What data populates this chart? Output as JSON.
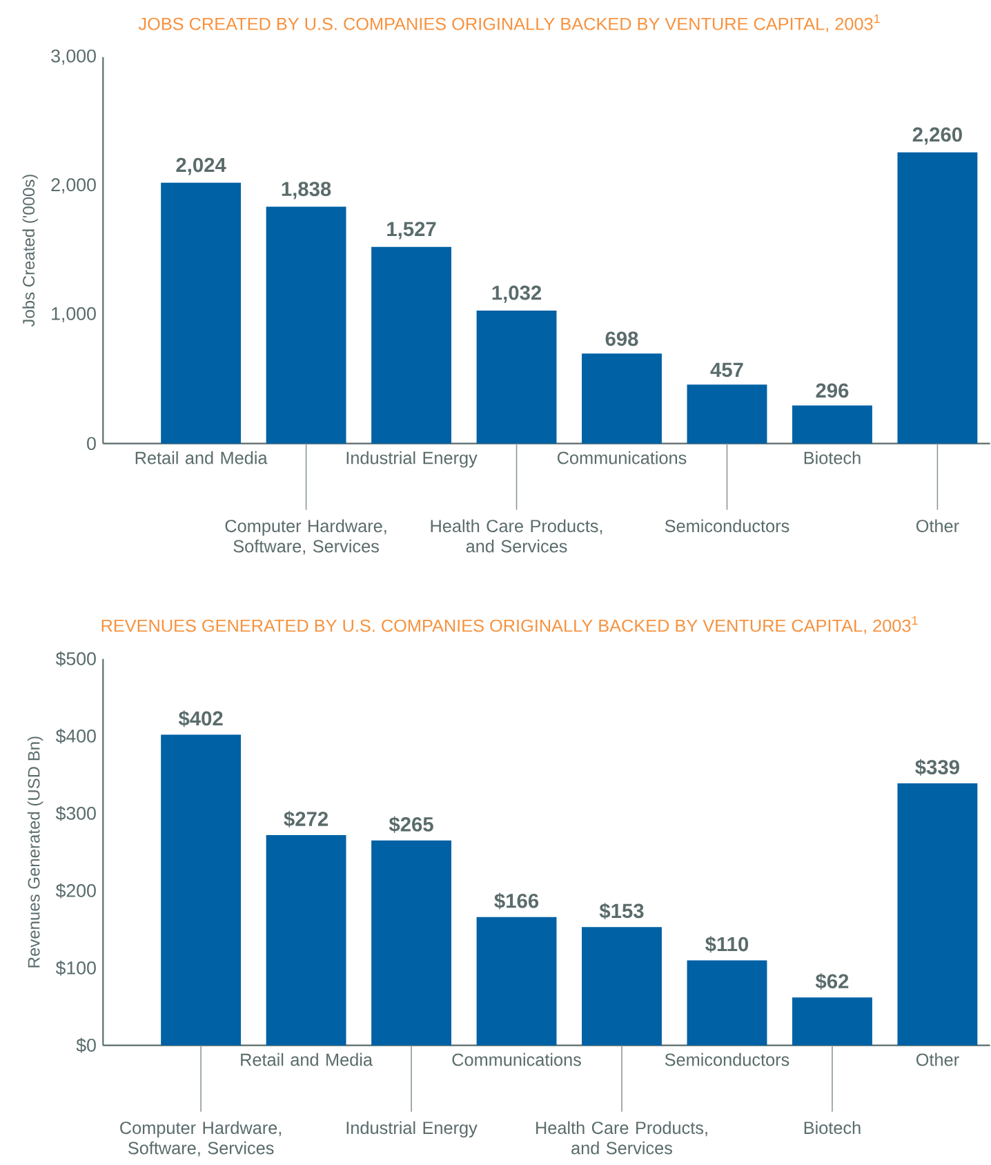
{
  "chart_data": [
    {
      "type": "bar",
      "title": "JOBS CREATED BY U.S. COMPANIES ORIGINALLY BACKED BY VENTURE CAPITAL, 2003$^{1}$",
      "ylabel": "Jobs Created ('000s)",
      "categories": [
        "Retail and Media",
        "Computer Hardware, Software, Services",
        "Industrial Energy",
        "Health Care Products, and Services",
        "Communications",
        "Semiconductors",
        "Biotech",
        "Other"
      ],
      "values": [
        2024,
        1838,
        1527,
        1032,
        698,
        457,
        296,
        2260
      ],
      "value_labels": [
        "2,024",
        "1,838",
        "1,527",
        "1,032",
        "698",
        "457",
        "296",
        "2,260"
      ],
      "color": "#0061a4",
      "ylim": [
        0,
        3000
      ],
      "yticks": [
        0,
        {
          "value": 1000,
          "label": "1,000"
        },
        {
          "value": 2000,
          "label": "2,000"
        },
        {
          "value": 3000,
          "label": "3,000"
        }
      ]
    },
    {
      "type": "bar",
      "title": "REVENUES GENERATED BY U.S. COMPANIES ORIGINALLY BACKED BY VENTURE CAPITAL, 2003$^{1}$",
      "ylabel": "Revenues Generated (USD Bn)",
      "categories": [
        "Computer Hardware, Software, Services",
        "Retail and Media",
        "Industrial Energy",
        "Communications",
        "Health Care Products, and Services",
        "Semiconductors",
        "Biotech",
        "Other"
      ],
      "values": [
        402,
        272,
        265,
        166,
        153,
        110,
        62,
        339
      ],
      "value_labels": [
        "$402",
        "$272",
        "$265",
        "$166",
        "$153",
        "$110",
        "$62",
        "$339"
      ],
      "color": "#0061a4",
      "ylim": [
        0,
        500
      ],
      "yticks": [
        {
          "value": 0,
          "label": "$0"
        },
        {
          "value": 100,
          "label": "$100"
        },
        {
          "value": 200,
          "label": "$200"
        },
        {
          "value": 300,
          "label": "$300"
        },
        {
          "value": 400,
          "label": "$400"
        },
        {
          "value": 500,
          "label": "$500"
        }
      ]
    }
  ]
}
